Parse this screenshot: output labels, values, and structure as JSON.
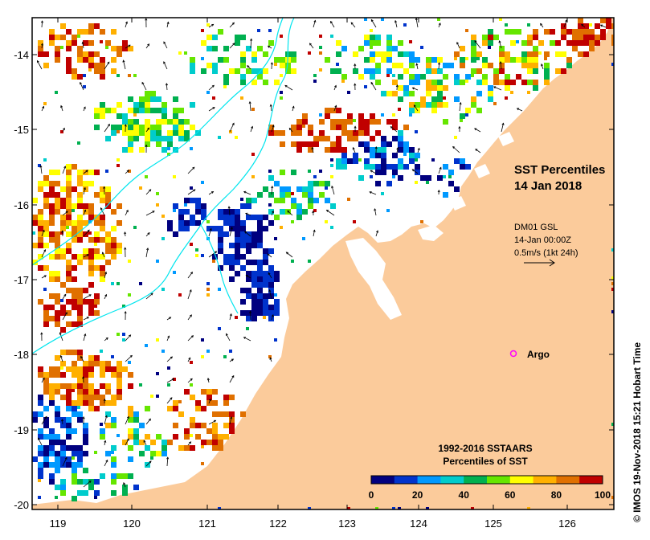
{
  "map": {
    "title_line1": "SST Percentiles",
    "title_line2": "14 Jan 2018",
    "lon_ticks": [
      "119",
      "120",
      "121",
      "122",
      "123",
      "124",
      "125",
      "126"
    ],
    "lat_ticks": [
      "-14",
      "-15",
      "-16",
      "-17",
      "-18",
      "-19",
      "-20"
    ],
    "colors": {
      "land": "#fbcb9b",
      "ocean": "#ffffff",
      "isobath": "#00e5ee",
      "argo": "#ff00ff"
    }
  },
  "current_legend": {
    "line1": "DM01 GSL",
    "line2": "14-Jan 00:00Z",
    "line3": "0.5m/s (1kt 24h)"
  },
  "argo": {
    "label": "Argo"
  },
  "colorbar": {
    "title_line1": "1992-2016 SSTAARS",
    "title_line2": "Percentiles of SST",
    "tick_labels": [
      "0",
      "20",
      "40",
      "60",
      "80",
      "100"
    ],
    "colors": [
      "#00007f",
      "#0033cc",
      "#0099ff",
      "#00cccc",
      "#00b050",
      "#66e600",
      "#ffff00",
      "#ffb000",
      "#e07000",
      "#c00000"
    ]
  },
  "credit": "© IMOS 19-Nov-2018 15:21 Hobart Time"
}
